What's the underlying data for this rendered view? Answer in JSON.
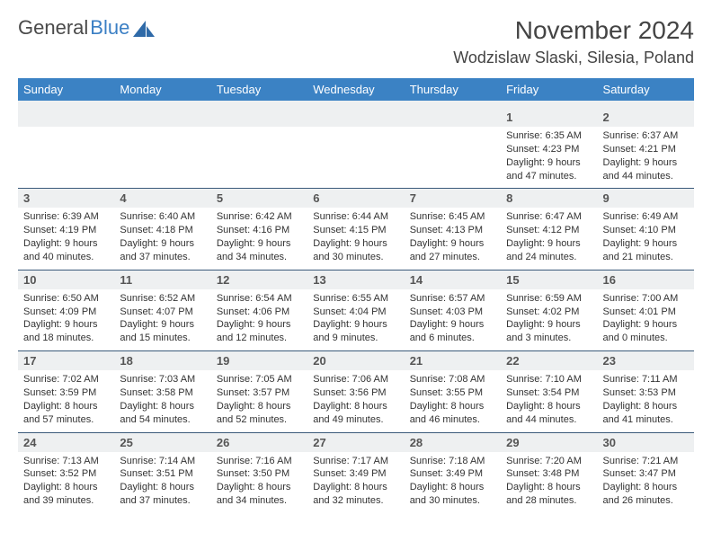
{
  "brand": {
    "word1": "General",
    "word2": "Blue"
  },
  "header": {
    "title": "November 2024",
    "location": "Wodzislaw Slaski, Silesia, Poland"
  },
  "colors": {
    "header_bar": "#3b82c4",
    "row_divider": "#3b5a7a",
    "day_strip": "#eef0f1",
    "text": "#333333",
    "brand_gray": "#4a4a4a",
    "brand_blue": "#3b7fc4"
  },
  "typography": {
    "title_fontsize": 28,
    "location_fontsize": 18,
    "dayhead_fontsize": 13,
    "daynum_fontsize": 13,
    "body_fontsize": 11
  },
  "weekdays": [
    "Sunday",
    "Monday",
    "Tuesday",
    "Wednesday",
    "Thursday",
    "Friday",
    "Saturday"
  ],
  "weeks": [
    [
      {
        "n": "",
        "sunrise": "",
        "sunset": "",
        "daylight": ""
      },
      {
        "n": "",
        "sunrise": "",
        "sunset": "",
        "daylight": ""
      },
      {
        "n": "",
        "sunrise": "",
        "sunset": "",
        "daylight": ""
      },
      {
        "n": "",
        "sunrise": "",
        "sunset": "",
        "daylight": ""
      },
      {
        "n": "",
        "sunrise": "",
        "sunset": "",
        "daylight": ""
      },
      {
        "n": "1",
        "sunrise": "Sunrise: 6:35 AM",
        "sunset": "Sunset: 4:23 PM",
        "daylight": "Daylight: 9 hours and 47 minutes."
      },
      {
        "n": "2",
        "sunrise": "Sunrise: 6:37 AM",
        "sunset": "Sunset: 4:21 PM",
        "daylight": "Daylight: 9 hours and 44 minutes."
      }
    ],
    [
      {
        "n": "3",
        "sunrise": "Sunrise: 6:39 AM",
        "sunset": "Sunset: 4:19 PM",
        "daylight": "Daylight: 9 hours and 40 minutes."
      },
      {
        "n": "4",
        "sunrise": "Sunrise: 6:40 AM",
        "sunset": "Sunset: 4:18 PM",
        "daylight": "Daylight: 9 hours and 37 minutes."
      },
      {
        "n": "5",
        "sunrise": "Sunrise: 6:42 AM",
        "sunset": "Sunset: 4:16 PM",
        "daylight": "Daylight: 9 hours and 34 minutes."
      },
      {
        "n": "6",
        "sunrise": "Sunrise: 6:44 AM",
        "sunset": "Sunset: 4:15 PM",
        "daylight": "Daylight: 9 hours and 30 minutes."
      },
      {
        "n": "7",
        "sunrise": "Sunrise: 6:45 AM",
        "sunset": "Sunset: 4:13 PM",
        "daylight": "Daylight: 9 hours and 27 minutes."
      },
      {
        "n": "8",
        "sunrise": "Sunrise: 6:47 AM",
        "sunset": "Sunset: 4:12 PM",
        "daylight": "Daylight: 9 hours and 24 minutes."
      },
      {
        "n": "9",
        "sunrise": "Sunrise: 6:49 AM",
        "sunset": "Sunset: 4:10 PM",
        "daylight": "Daylight: 9 hours and 21 minutes."
      }
    ],
    [
      {
        "n": "10",
        "sunrise": "Sunrise: 6:50 AM",
        "sunset": "Sunset: 4:09 PM",
        "daylight": "Daylight: 9 hours and 18 minutes."
      },
      {
        "n": "11",
        "sunrise": "Sunrise: 6:52 AM",
        "sunset": "Sunset: 4:07 PM",
        "daylight": "Daylight: 9 hours and 15 minutes."
      },
      {
        "n": "12",
        "sunrise": "Sunrise: 6:54 AM",
        "sunset": "Sunset: 4:06 PM",
        "daylight": "Daylight: 9 hours and 12 minutes."
      },
      {
        "n": "13",
        "sunrise": "Sunrise: 6:55 AM",
        "sunset": "Sunset: 4:04 PM",
        "daylight": "Daylight: 9 hours and 9 minutes."
      },
      {
        "n": "14",
        "sunrise": "Sunrise: 6:57 AM",
        "sunset": "Sunset: 4:03 PM",
        "daylight": "Daylight: 9 hours and 6 minutes."
      },
      {
        "n": "15",
        "sunrise": "Sunrise: 6:59 AM",
        "sunset": "Sunset: 4:02 PM",
        "daylight": "Daylight: 9 hours and 3 minutes."
      },
      {
        "n": "16",
        "sunrise": "Sunrise: 7:00 AM",
        "sunset": "Sunset: 4:01 PM",
        "daylight": "Daylight: 9 hours and 0 minutes."
      }
    ],
    [
      {
        "n": "17",
        "sunrise": "Sunrise: 7:02 AM",
        "sunset": "Sunset: 3:59 PM",
        "daylight": "Daylight: 8 hours and 57 minutes."
      },
      {
        "n": "18",
        "sunrise": "Sunrise: 7:03 AM",
        "sunset": "Sunset: 3:58 PM",
        "daylight": "Daylight: 8 hours and 54 minutes."
      },
      {
        "n": "19",
        "sunrise": "Sunrise: 7:05 AM",
        "sunset": "Sunset: 3:57 PM",
        "daylight": "Daylight: 8 hours and 52 minutes."
      },
      {
        "n": "20",
        "sunrise": "Sunrise: 7:06 AM",
        "sunset": "Sunset: 3:56 PM",
        "daylight": "Daylight: 8 hours and 49 minutes."
      },
      {
        "n": "21",
        "sunrise": "Sunrise: 7:08 AM",
        "sunset": "Sunset: 3:55 PM",
        "daylight": "Daylight: 8 hours and 46 minutes."
      },
      {
        "n": "22",
        "sunrise": "Sunrise: 7:10 AM",
        "sunset": "Sunset: 3:54 PM",
        "daylight": "Daylight: 8 hours and 44 minutes."
      },
      {
        "n": "23",
        "sunrise": "Sunrise: 7:11 AM",
        "sunset": "Sunset: 3:53 PM",
        "daylight": "Daylight: 8 hours and 41 minutes."
      }
    ],
    [
      {
        "n": "24",
        "sunrise": "Sunrise: 7:13 AM",
        "sunset": "Sunset: 3:52 PM",
        "daylight": "Daylight: 8 hours and 39 minutes."
      },
      {
        "n": "25",
        "sunrise": "Sunrise: 7:14 AM",
        "sunset": "Sunset: 3:51 PM",
        "daylight": "Daylight: 8 hours and 37 minutes."
      },
      {
        "n": "26",
        "sunrise": "Sunrise: 7:16 AM",
        "sunset": "Sunset: 3:50 PM",
        "daylight": "Daylight: 8 hours and 34 minutes."
      },
      {
        "n": "27",
        "sunrise": "Sunrise: 7:17 AM",
        "sunset": "Sunset: 3:49 PM",
        "daylight": "Daylight: 8 hours and 32 minutes."
      },
      {
        "n": "28",
        "sunrise": "Sunrise: 7:18 AM",
        "sunset": "Sunset: 3:49 PM",
        "daylight": "Daylight: 8 hours and 30 minutes."
      },
      {
        "n": "29",
        "sunrise": "Sunrise: 7:20 AM",
        "sunset": "Sunset: 3:48 PM",
        "daylight": "Daylight: 8 hours and 28 minutes."
      },
      {
        "n": "30",
        "sunrise": "Sunrise: 7:21 AM",
        "sunset": "Sunset: 3:47 PM",
        "daylight": "Daylight: 8 hours and 26 minutes."
      }
    ]
  ]
}
